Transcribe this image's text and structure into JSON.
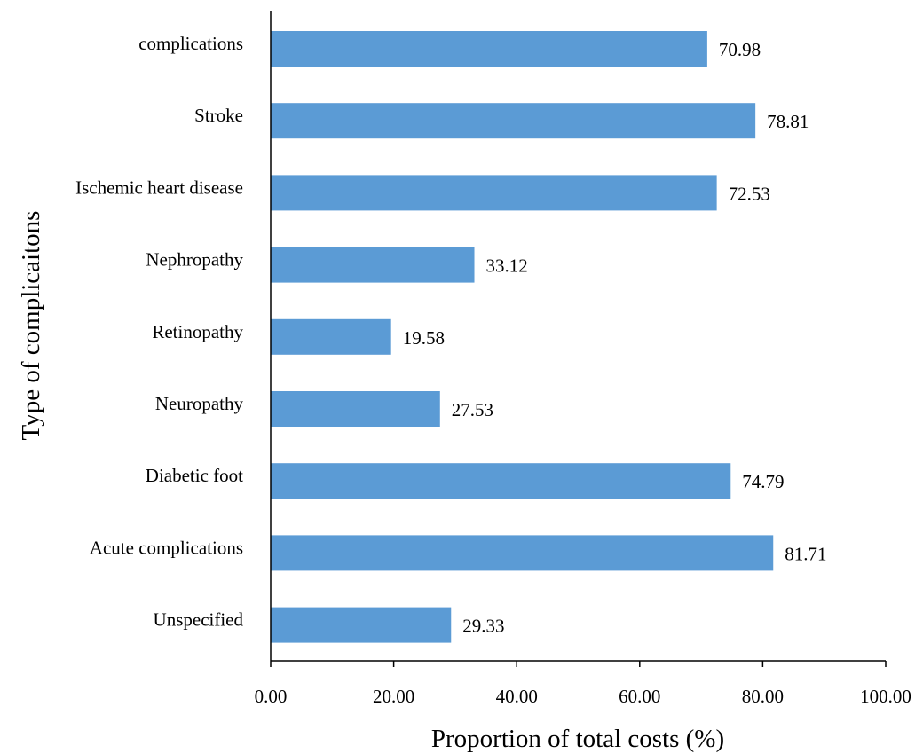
{
  "chart_data": {
    "type": "bar",
    "orientation": "horizontal",
    "title": "",
    "xlabel": "Proportion of total costs (%)",
    "ylabel": "Type of complicaitons",
    "categories": [
      "complications",
      "Stroke",
      "Ischemic heart disease",
      "Nephropathy",
      "Retinopathy",
      "Neuropathy",
      "Diabetic foot",
      "Acute complications",
      "Unspecified"
    ],
    "values": [
      70.98,
      78.81,
      72.53,
      33.12,
      19.58,
      27.53,
      74.79,
      81.71,
      29.33
    ],
    "value_labels": [
      "70.98",
      "78.81",
      "72.53",
      "33.12",
      "19.58",
      "27.53",
      "74.79",
      "81.71",
      "29.33"
    ],
    "xlim": [
      0,
      100
    ],
    "xticks": [
      0,
      20,
      40,
      60,
      80,
      100
    ],
    "xtick_labels": [
      "0.00",
      "20.00",
      "40.00",
      "60.00",
      "80.00",
      "100.00"
    ],
    "grid": false,
    "legend": "none",
    "bar_color": "#5b9bd5",
    "axis_color": "#000000"
  }
}
